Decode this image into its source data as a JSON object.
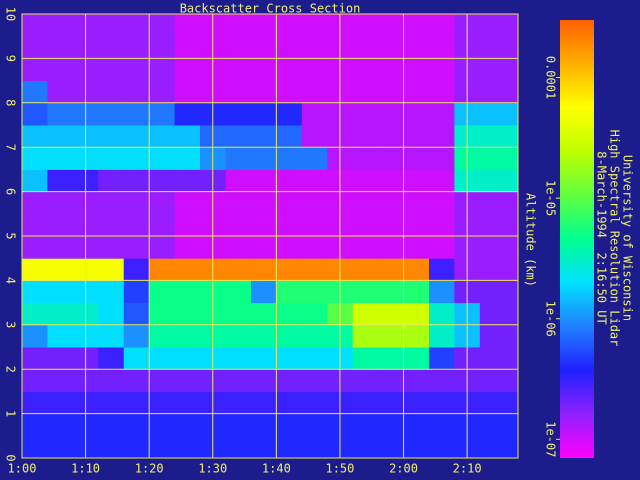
{
  "chart_data": {
    "type": "heatmap",
    "title": "Backscatter Cross Section",
    "ylabel": "Altitude (km)",
    "annotations": [
      "University of Wisconsin",
      "High Spectral Resolution Lidar",
      "8-March-1994  2:16:50 UT"
    ],
    "x": [
      62,
      66,
      70,
      74,
      78,
      82,
      86,
      90,
      94,
      98,
      102,
      106,
      110,
      114,
      118,
      122,
      126,
      130,
      134,
      138
    ],
    "y": [
      0.25,
      0.75,
      1.25,
      1.75,
      2.25,
      2.75,
      3.25,
      3.75,
      4.25,
      4.75,
      5.25,
      5.75,
      6.25,
      6.75,
      7.25,
      7.75,
      8.25,
      8.75,
      9.25,
      9.75
    ],
    "values": [
      [
        4e-07,
        4e-07,
        4e-07,
        4e-07,
        4e-07,
        4e-07,
        4e-07,
        4e-07,
        4e-07,
        4e-07,
        4e-07,
        4e-07,
        4e-07,
        4e-07,
        4e-07,
        4e-07,
        4e-07,
        4e-07,
        4e-07,
        4e-07
      ],
      [
        4e-07,
        4e-07,
        4e-07,
        4e-07,
        4e-07,
        4e-07,
        4e-07,
        4e-07,
        4e-07,
        4e-07,
        4e-07,
        4e-07,
        4e-07,
        4e-07,
        4e-07,
        4e-07,
        4e-07,
        4e-07,
        4e-07,
        4e-07
      ],
      [
        3e-07,
        3e-07,
        3e-07,
        3e-07,
        3e-07,
        3e-07,
        3e-07,
        3e-07,
        3e-07,
        3e-07,
        3e-07,
        3e-07,
        3e-07,
        3e-07,
        3e-07,
        3e-07,
        3e-07,
        3e-07,
        3e-07,
        3e-07
      ],
      [
        2e-07,
        2e-07,
        2e-07,
        2e-07,
        2e-07,
        2e-07,
        2e-07,
        2e-07,
        2e-07,
        2e-07,
        2e-07,
        2e-07,
        2e-07,
        2e-07,
        2e-07,
        2e-07,
        2e-07,
        2e-07,
        2e-07,
        2e-07
      ],
      [
        2e-07,
        2e-07,
        2e-07,
        3e-07,
        2e-06,
        2e-06,
        2e-06,
        2e-06,
        2e-06,
        2e-06,
        2e-06,
        2e-06,
        2e-06,
        4e-06,
        4e-06,
        4e-06,
        5e-07,
        2e-07,
        2e-07,
        2e-07
      ],
      [
        1e-06,
        2e-06,
        2e-06,
        2e-06,
        1e-06,
        4e-06,
        4e-06,
        4e-06,
        4e-06,
        4e-06,
        4e-06,
        4e-06,
        4e-06,
        2e-05,
        2e-05,
        2e-05,
        3e-06,
        1.5e-06,
        2e-07,
        2e-07
      ],
      [
        3e-06,
        3e-06,
        3e-06,
        2e-06,
        6e-07,
        5e-06,
        5e-06,
        5e-06,
        5e-06,
        5e-06,
        5e-06,
        5e-06,
        1e-05,
        3e-05,
        3e-05,
        3e-05,
        3e-06,
        1.5e-06,
        2e-07,
        2e-07
      ],
      [
        2e-06,
        2e-06,
        2e-06,
        2e-06,
        5e-07,
        5e-06,
        5e-06,
        5e-06,
        5e-06,
        1e-06,
        6e-06,
        6e-06,
        6e-06,
        6e-06,
        6e-06,
        6e-06,
        1e-06,
        2e-07,
        2e-07,
        2e-07
      ],
      [
        5e-05,
        5e-05,
        5e-05,
        5e-05,
        3e-07,
        0.0002,
        0.0002,
        0.0002,
        0.0002,
        0.0002,
        0.0002,
        0.0002,
        0.0002,
        0.0002,
        0.0002,
        0.0002,
        3e-07,
        1.5e-07,
        1.5e-07,
        1.5e-07
      ],
      [
        1.5e-07,
        1.5e-07,
        1.5e-07,
        1.5e-07,
        1.5e-07,
        1.5e-07,
        1e-07,
        1e-07,
        1e-07,
        1e-07,
        1e-07,
        1e-07,
        1e-07,
        1e-07,
        1e-07,
        1e-07,
        1e-07,
        1.5e-07,
        1.5e-07,
        1.5e-07
      ],
      [
        1.5e-07,
        1.5e-07,
        1.5e-07,
        1.5e-07,
        1.5e-07,
        1.5e-07,
        1e-07,
        1e-07,
        1e-07,
        1e-07,
        1e-07,
        1e-07,
        1e-07,
        1e-07,
        1e-07,
        1e-07,
        1e-07,
        1.5e-07,
        1.5e-07,
        1.5e-07
      ],
      [
        1.5e-07,
        1.5e-07,
        1.5e-07,
        1.5e-07,
        1.5e-07,
        1.5e-07,
        1e-07,
        1e-07,
        1e-07,
        1e-07,
        1e-07,
        1e-07,
        1e-07,
        1e-07,
        1e-07,
        1e-07,
        1e-07,
        1.5e-07,
        1.5e-07,
        1.5e-07
      ],
      [
        1.5e-06,
        3e-07,
        3e-07,
        2e-07,
        2e-07,
        2e-07,
        2e-07,
        2e-07,
        1e-07,
        1e-07,
        1e-07,
        1e-07,
        1e-07,
        1e-07,
        1e-07,
        1e-07,
        1e-07,
        3e-06,
        3e-06,
        3e-06
      ],
      [
        2e-06,
        2e-06,
        2e-06,
        2e-06,
        2e-06,
        2e-06,
        2e-06,
        1e-06,
        8e-07,
        8e-07,
        8e-07,
        8e-07,
        1.2e-07,
        1.2e-07,
        1.2e-07,
        1.2e-07,
        1.2e-07,
        4e-06,
        4e-06,
        4e-06
      ],
      [
        1.5e-06,
        1.5e-06,
        1.5e-06,
        1.5e-06,
        1.5e-06,
        1.5e-06,
        1.5e-06,
        7e-07,
        7e-07,
        7e-07,
        7e-07,
        1.2e-07,
        1.2e-07,
        1.2e-07,
        1.2e-07,
        1.2e-07,
        1.2e-07,
        3e-06,
        3e-06,
        3e-06
      ],
      [
        6e-07,
        8e-07,
        8e-07,
        8e-07,
        8e-07,
        8e-07,
        4e-07,
        4e-07,
        4e-07,
        4e-07,
        4e-07,
        1.2e-07,
        1.2e-07,
        1.2e-07,
        1.2e-07,
        1.2e-07,
        1.2e-07,
        1.5e-06,
        1.5e-06,
        1.5e-06
      ],
      [
        8e-07,
        1.5e-07,
        1.5e-07,
        1.5e-07,
        1.5e-07,
        1.5e-07,
        1e-07,
        1e-07,
        1e-07,
        1e-07,
        1e-07,
        1e-07,
        1e-07,
        1e-07,
        1e-07,
        1e-07,
        1e-07,
        1.5e-07,
        1.5e-07,
        1.5e-07
      ],
      [
        1.5e-07,
        1.5e-07,
        1.5e-07,
        1.5e-07,
        1.5e-07,
        1.5e-07,
        1e-07,
        1e-07,
        1e-07,
        1e-07,
        1e-07,
        1e-07,
        1e-07,
        1e-07,
        1e-07,
        1e-07,
        1e-07,
        1.5e-07,
        1.5e-07,
        1.5e-07
      ],
      [
        1.5e-07,
        1.5e-07,
        1.5e-07,
        1.5e-07,
        1.5e-07,
        1.5e-07,
        1e-07,
        1e-07,
        1e-07,
        1e-07,
        1e-07,
        1e-07,
        1e-07,
        1e-07,
        1e-07,
        1e-07,
        1e-07,
        1.5e-07,
        1.5e-07,
        1.5e-07
      ],
      [
        1.5e-07,
        1.5e-07,
        1.5e-07,
        1.5e-07,
        1.5e-07,
        1.5e-07,
        1e-07,
        1e-07,
        1e-07,
        1e-07,
        1e-07,
        1e-07,
        1e-07,
        1e-07,
        1e-07,
        1e-07,
        1e-07,
        1.5e-07,
        1.5e-07,
        1.5e-07
      ]
    ],
    "xlim": [
      60,
      138
    ],
    "xticks": [
      {
        "value": 60,
        "label": "1:00"
      },
      {
        "value": 70,
        "label": "1:10"
      },
      {
        "value": 80,
        "label": "1:20"
      },
      {
        "value": 90,
        "label": "1:30"
      },
      {
        "value": 100,
        "label": "1:40"
      },
      {
        "value": 110,
        "label": "1:50"
      },
      {
        "value": 120,
        "label": "2:00"
      },
      {
        "value": 130,
        "label": "2:10"
      }
    ],
    "ylim": [
      0,
      10
    ],
    "yticks": [
      0,
      1,
      2,
      3,
      4,
      5,
      6,
      7,
      8,
      9,
      10
    ],
    "clim": [
      7e-08,
      0.0003
    ],
    "clog": true,
    "cticks": [
      0.0001,
      {
        "value": 1e-05,
        "label": "1e-05"
      },
      {
        "value": 1e-06,
        "label": "1e-06"
      },
      {
        "value": 1e-07,
        "label": "1e-07"
      }
    ],
    "colorscale": [
      "#ff00ff",
      "#9020ff",
      "#2020ff",
      "#2080ff",
      "#00e0ff",
      "#00ff90",
      "#60ff40",
      "#c0ff00",
      "#ffff00",
      "#ffb000",
      "#ff6000"
    ],
    "grid": true,
    "grid_color": "#e8e860",
    "text_color": "#f0f070"
  }
}
